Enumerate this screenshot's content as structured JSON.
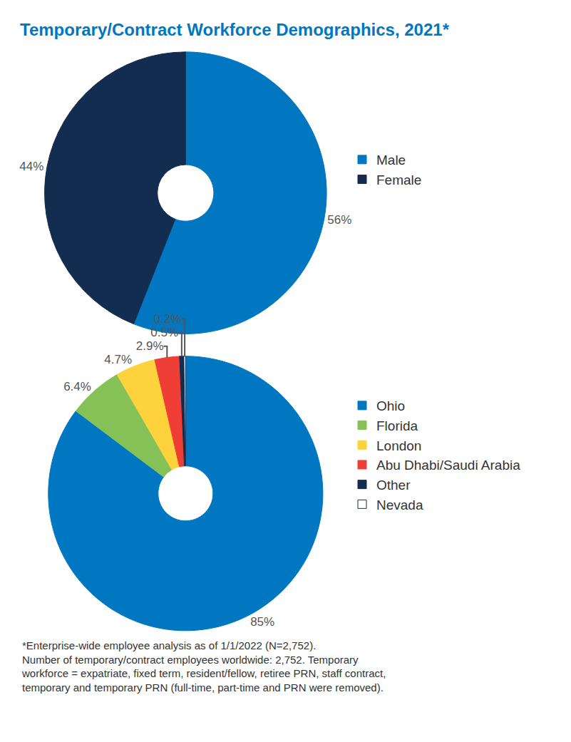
{
  "title": "Temporary/Contract Workforce Demographics, 2021*",
  "note": [
    "*Enterprise-wide employee analysis as of 1/1/2022 (N=2,752).",
    "Number of temporary/contract employees worldwide: 2,752. Temporary",
    "workforce = expatriate, fixed term, resident/fellow, retiree PRN, staff contract,",
    "temporary and temporary PRN (full-time, part-time and PRN were removed)."
  ],
  "chart_data": [
    {
      "type": "pie",
      "categories": [
        "Male",
        "Female"
      ],
      "values": [
        56,
        44
      ],
      "value_labels": [
        "56%",
        "44%"
      ],
      "colors": [
        "#0077c0",
        "#132d50"
      ],
      "data_labels": true,
      "legend": "right"
    },
    {
      "type": "pie",
      "categories": [
        "Ohio",
        "Florida",
        "London",
        "Abu Dhabi/Saudi Arabia",
        "Other",
        "Nevada"
      ],
      "values": [
        85,
        6.4,
        4.7,
        2.9,
        0.5,
        0.2
      ],
      "value_labels": [
        "85%",
        "6.4%",
        "4.7%",
        "2.9%",
        "0.5%",
        "0.2%"
      ],
      "colors": [
        "#0077c0",
        "#86c157",
        "#fdd23d",
        "#ee3e36",
        "#132d50",
        "#ffffff"
      ],
      "data_labels": true,
      "legend": "right"
    }
  ]
}
